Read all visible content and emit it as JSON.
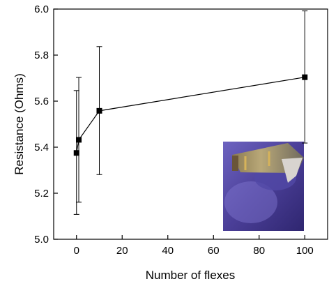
{
  "chart_data": {
    "type": "scatter",
    "title": "",
    "xlabel": "Number of flexes",
    "ylabel": "Resistance (Ohms)",
    "xlim": [
      -10,
      110
    ],
    "ylim": [
      5.0,
      6.0
    ],
    "xticks": [
      0,
      20,
      40,
      60,
      80,
      100
    ],
    "yticks": [
      5.0,
      5.2,
      5.4,
      5.6,
      5.8,
      6.0
    ],
    "xtick_labels": [
      "0",
      "20",
      "40",
      "60",
      "80",
      "100"
    ],
    "ytick_labels": [
      "5.0",
      "5.2",
      "5.4",
      "5.6",
      "5.8",
      "6.0"
    ],
    "grid": false,
    "line_connected": true,
    "marker": "square",
    "series": [
      {
        "x": [
          0,
          1,
          10,
          100
        ],
        "y": [
          5.375,
          5.432,
          5.558,
          5.704
        ],
        "error_low": [
          5.108,
          5.161,
          5.281,
          5.418
        ],
        "error_high": [
          5.646,
          5.703,
          5.837,
          5.992
        ]
      }
    ],
    "inset": {
      "description_icon": "photo-of-flexible-device-held-in-gloved-hand-icon"
    }
  },
  "colors": {
    "axis": "#000000",
    "marker": "#000000",
    "line": "#000000",
    "glove": "#5a4fa6"
  }
}
